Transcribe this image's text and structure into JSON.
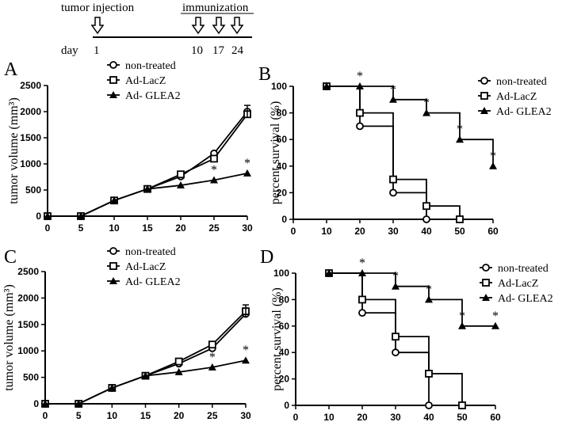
{
  "timeline": {
    "tumor_label": "tumor injection",
    "immun_label": "immunization",
    "day_label": "day",
    "days": [
      "1",
      "10",
      "17",
      "24"
    ]
  },
  "chart_data": [
    {
      "panel": "A",
      "type": "line",
      "xlabel": "",
      "ylabel": "tumor volume (mm³)",
      "xlim": [
        0,
        30
      ],
      "ylim": [
        0,
        2500
      ],
      "xticks": [
        "0",
        "5",
        "10",
        "15",
        "20",
        "25",
        "30"
      ],
      "yticks": [
        "0",
        "500",
        "1000",
        "1500",
        "2000",
        "2500"
      ],
      "legend": [
        "non-treated",
        "Ad-LacZ",
        "Ad- GLEA2"
      ],
      "series": [
        {
          "name": "non-treated",
          "marker": "circle",
          "x": [
            0,
            5,
            10,
            15,
            20,
            25,
            30
          ],
          "y": [
            0,
            0,
            300,
            520,
            760,
            1200,
            2000
          ]
        },
        {
          "name": "Ad-LacZ",
          "marker": "square",
          "x": [
            0,
            5,
            10,
            15,
            20,
            25,
            30
          ],
          "y": [
            0,
            0,
            300,
            520,
            800,
            1100,
            1950
          ]
        },
        {
          "name": "Ad- GLEA2",
          "marker": "triangle",
          "x": [
            0,
            5,
            10,
            15,
            20,
            25,
            30
          ],
          "y": [
            0,
            0,
            300,
            520,
            590,
            690,
            820
          ]
        }
      ],
      "error_bar": {
        "x": 30,
        "y": 2000,
        "err": 120
      },
      "stars": [
        {
          "x": 25,
          "y": 690,
          "text": "*"
        },
        {
          "x": 30,
          "y": 820,
          "text": "*"
        }
      ]
    },
    {
      "panel": "B",
      "type": "line",
      "xlabel": "",
      "ylabel": "percent survival (%)",
      "xlim": [
        0,
        60
      ],
      "ylim": [
        0,
        100
      ],
      "xticks": [
        "0",
        "10",
        "20",
        "30",
        "40",
        "50",
        "60"
      ],
      "yticks": [
        "0",
        "20",
        "40",
        "60",
        "80",
        "100"
      ],
      "legend": [
        "non-treated",
        "Ad-LacZ",
        "Ad- GLEA2"
      ],
      "series": [
        {
          "name": "non-treated",
          "marker": "circle",
          "x": [
            10,
            20,
            30,
            40
          ],
          "y": [
            100,
            70,
            20,
            0
          ]
        },
        {
          "name": "Ad-LacZ",
          "marker": "square",
          "x": [
            10,
            20,
            30,
            40,
            50
          ],
          "y": [
            100,
            80,
            30,
            10,
            0
          ]
        },
        {
          "name": "Ad- GLEA2",
          "marker": "triangle",
          "x": [
            10,
            20,
            30,
            40,
            50,
            60
          ],
          "y": [
            100,
            100,
            90,
            80,
            60,
            40
          ]
        }
      ],
      "stars": [
        {
          "x": 20,
          "y": 100,
          "text": "*"
        },
        {
          "x": 30,
          "y": 90,
          "text": "*"
        },
        {
          "x": 40,
          "y": 80,
          "text": "*"
        },
        {
          "x": 50,
          "y": 60,
          "text": "*"
        },
        {
          "x": 60,
          "y": 40,
          "text": "*"
        }
      ]
    },
    {
      "panel": "C",
      "type": "line",
      "xlabel": "",
      "ylabel": "tumor volume (mm³)",
      "xlim": [
        0,
        30
      ],
      "ylim": [
        0,
        2500
      ],
      "xticks": [
        "0",
        "5",
        "10",
        "15",
        "20",
        "25",
        "30"
      ],
      "yticks": [
        "0",
        "500",
        "1000",
        "1500",
        "2000",
        "2500"
      ],
      "legend": [
        "non-treated",
        "Ad-LacZ",
        "Ad- GLEA2"
      ],
      "series": [
        {
          "name": "non-treated",
          "marker": "circle",
          "x": [
            0,
            5,
            10,
            15,
            20,
            25,
            30
          ],
          "y": [
            0,
            0,
            300,
            530,
            760,
            1050,
            1700
          ]
        },
        {
          "name": "Ad-LacZ",
          "marker": "square",
          "x": [
            0,
            5,
            10,
            15,
            20,
            25,
            30
          ],
          "y": [
            0,
            0,
            300,
            530,
            800,
            1120,
            1750
          ]
        },
        {
          "name": "Ad- GLEA2",
          "marker": "triangle",
          "x": [
            0,
            5,
            10,
            15,
            20,
            25,
            30
          ],
          "y": [
            0,
            0,
            300,
            530,
            600,
            690,
            820
          ]
        }
      ],
      "error_bar": {
        "x": 30,
        "y": 1750,
        "err": 120
      },
      "stars": [
        {
          "x": 25,
          "y": 690,
          "text": "*"
        },
        {
          "x": 30,
          "y": 820,
          "text": "*"
        }
      ]
    },
    {
      "panel": "D",
      "type": "line",
      "xlabel": "",
      "ylabel": "percent survival (%)",
      "xlim": [
        0,
        60
      ],
      "ylim": [
        0,
        100
      ],
      "xticks": [
        "0",
        "10",
        "20",
        "30",
        "40",
        "50",
        "60"
      ],
      "yticks": [
        "0",
        "20",
        "40",
        "60",
        "80",
        "100"
      ],
      "legend": [
        "non-treated",
        "Ad-LacZ",
        "Ad- GLEA2"
      ],
      "series": [
        {
          "name": "non-treated",
          "marker": "circle",
          "x": [
            10,
            20,
            30,
            40
          ],
          "y": [
            100,
            70,
            40,
            0
          ]
        },
        {
          "name": "Ad-LacZ",
          "marker": "square",
          "x": [
            10,
            20,
            30,
            40,
            50
          ],
          "y": [
            100,
            80,
            52,
            24,
            0
          ]
        },
        {
          "name": "Ad- GLEA2",
          "marker": "triangle",
          "x": [
            10,
            20,
            30,
            40,
            50,
            60
          ],
          "y": [
            100,
            100,
            90,
            80,
            60,
            60
          ]
        }
      ],
      "stars": [
        {
          "x": 20,
          "y": 100,
          "text": "*"
        },
        {
          "x": 30,
          "y": 90,
          "text": "*"
        },
        {
          "x": 40,
          "y": 80,
          "text": "*"
        },
        {
          "x": 50,
          "y": 60,
          "text": "*"
        },
        {
          "x": 60,
          "y": 60,
          "text": "*"
        }
      ]
    }
  ]
}
